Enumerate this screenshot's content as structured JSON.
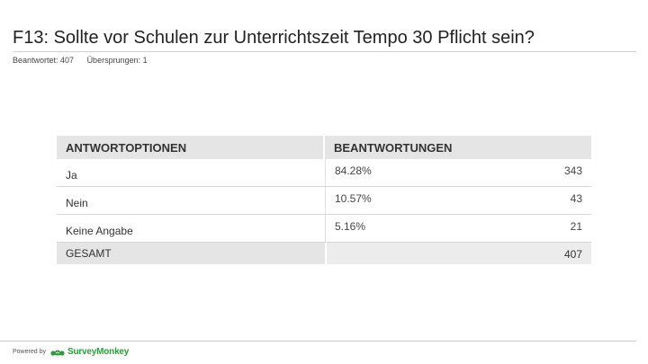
{
  "question": {
    "title": "F13: Sollte vor Schulen zur Unterrichtszeit Tempo 30 Pflicht sein?",
    "answered": "Beantwortet: 407",
    "skipped": "Übersprungen: 1"
  },
  "table": {
    "header_options": "ANTWORTOPTIONEN",
    "header_responses": "BEANTWORTUNGEN",
    "rows": [
      {
        "label": "Ja",
        "percent": "84.28%",
        "count": "343"
      },
      {
        "label": "Nein",
        "percent": "10.57%",
        "count": "43"
      },
      {
        "label": "Keine Angabe",
        "percent": "5.16%",
        "count": "21"
      }
    ],
    "total_label": "GESAMT",
    "total_count": "407"
  },
  "footer": {
    "powered_by": "Powered by",
    "brand": "SurveyMonkey",
    "brand_color": "#2f9a3e"
  }
}
